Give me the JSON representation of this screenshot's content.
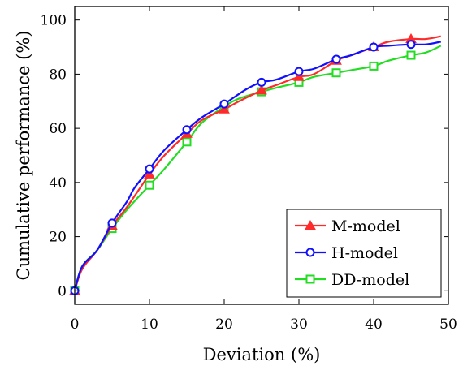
{
  "chart_data": {
    "type": "line",
    "title": "",
    "xlabel": "Deviation (%)",
    "ylabel": "Cumulative performance (%)",
    "xlim": [
      0,
      50
    ],
    "ylim": [
      -5,
      105
    ],
    "xticks": [
      0,
      10,
      20,
      30,
      40,
      50
    ],
    "yticks": [
      0,
      20,
      40,
      60,
      80,
      100
    ],
    "grid": false,
    "legend_position": "bottom-right",
    "series": [
      {
        "name": "M-model",
        "color": "#ff2a2a",
        "marker": "triangle",
        "x": [
          0,
          1,
          3,
          5,
          7,
          10,
          12,
          15,
          17,
          20,
          22,
          25,
          27,
          30,
          32,
          35,
          37,
          40,
          42,
          45,
          47,
          49
        ],
        "y": [
          0,
          8,
          15,
          24,
          31,
          43,
          50,
          58,
          63,
          67,
          70,
          74,
          76,
          79,
          80,
          85,
          87,
          90,
          92,
          93,
          93,
          94
        ],
        "marker_x": [
          0,
          5,
          10,
          15,
          20,
          25,
          30,
          35,
          40,
          45
        ]
      },
      {
        "name": "H-model",
        "color": "#1010ff",
        "marker": "circle",
        "x": [
          0,
          1,
          3,
          5,
          7,
          8,
          10,
          12,
          15,
          17,
          20,
          23,
          25,
          27,
          30,
          32,
          35,
          37,
          40,
          42,
          45,
          47,
          49
        ],
        "y": [
          0,
          9,
          15,
          25,
          33,
          38,
          45,
          52,
          59.5,
          64,
          69,
          74.5,
          77,
          78,
          81,
          82,
          85.5,
          87,
          90,
          90.5,
          91,
          91,
          92
        ],
        "marker_x": [
          0,
          5,
          10,
          15,
          20,
          25,
          30,
          35,
          40,
          45
        ]
      },
      {
        "name": "DD-model",
        "color": "#22dd22",
        "marker": "square",
        "x": [
          0,
          1,
          3,
          5,
          7,
          10,
          12,
          15,
          17,
          20,
          22,
          25,
          27,
          30,
          32,
          35,
          37,
          40,
          42,
          45,
          47,
          49
        ],
        "y": [
          0,
          9,
          15,
          23,
          30,
          39,
          45,
          55,
          62,
          68,
          71,
          73.5,
          75,
          77,
          79,
          80.5,
          81.5,
          83,
          85,
          87,
          88,
          90.5
        ],
        "marker_x": [
          0,
          5,
          10,
          15,
          20,
          25,
          30,
          35,
          40,
          45
        ]
      }
    ]
  }
}
